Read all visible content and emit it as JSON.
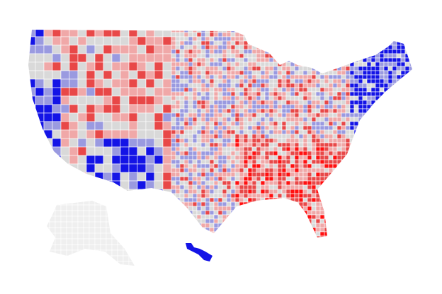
{
  "map": {
    "palette": [
      "#1414e6",
      "#9a9ae0",
      "#d9d9d9",
      "#f0a8a8",
      "#e84848",
      "#ff1010"
    ],
    "inactive": "#efefef"
  }
}
